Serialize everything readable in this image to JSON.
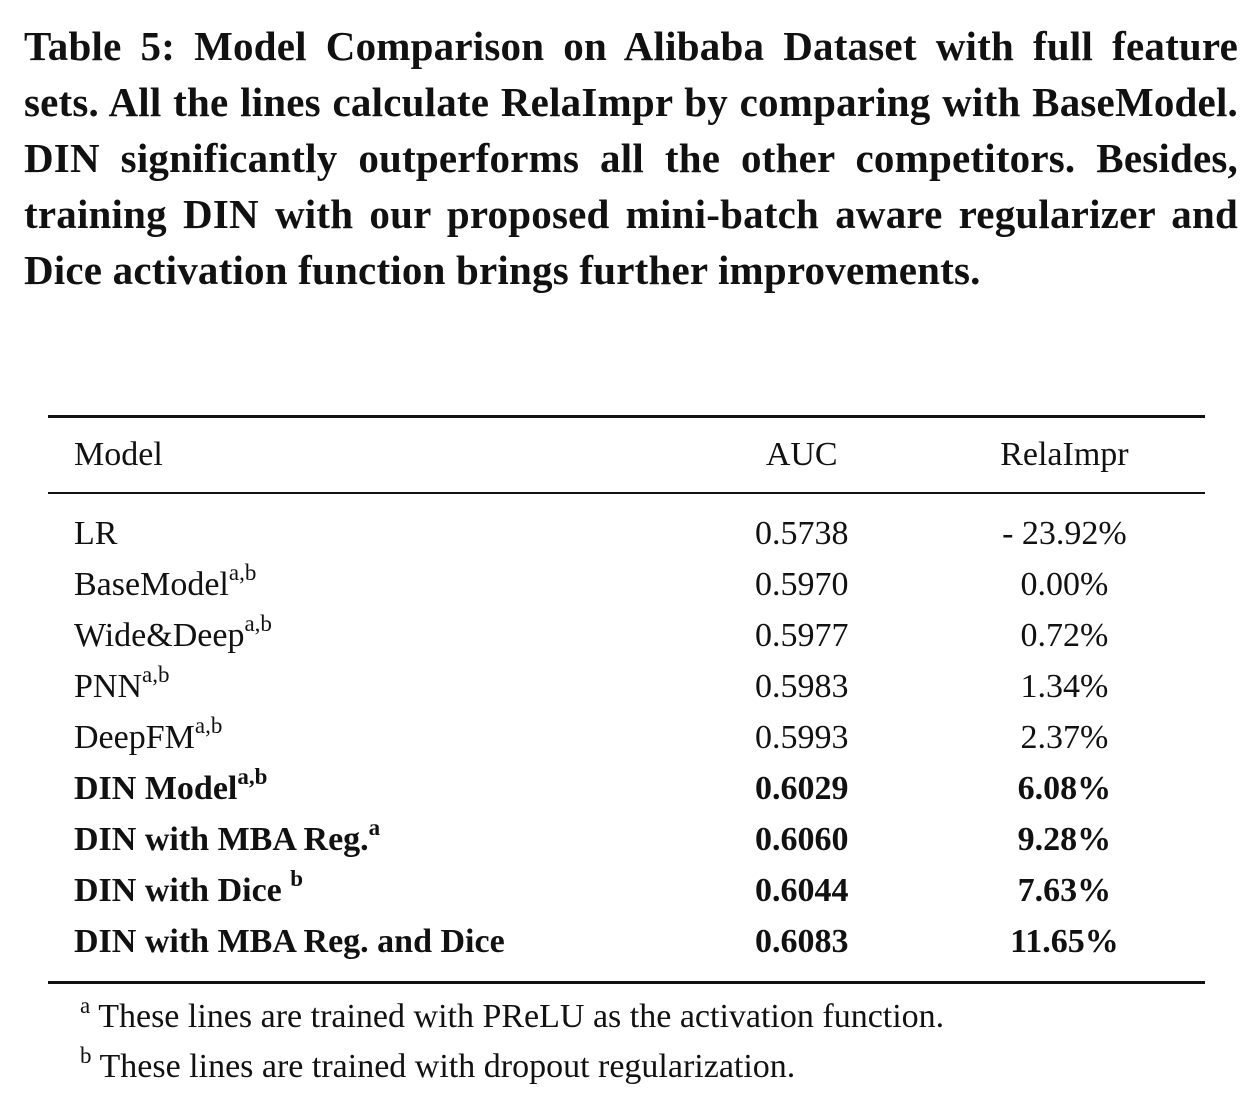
{
  "caption": "Table 5: Model Comparison on Alibaba Dataset with full feature sets. All the lines calculate RelaImpr by comparing with BaseModel. DIN significantly outperforms all the other competitors. Besides, training DIN with our proposed mini-batch aware regularizer and Dice activation function brings further improvements.",
  "table": {
    "headers": {
      "model": "Model",
      "auc": "AUC",
      "relaimpr": "RelaImpr"
    },
    "rows": [
      {
        "model": "LR",
        "sup": "",
        "auc": "0.5738",
        "relaimpr": "- 23.92%",
        "bold": false
      },
      {
        "model": "BaseModel",
        "sup": "a,b",
        "auc": "0.5970",
        "relaimpr": "0.00%",
        "bold": false
      },
      {
        "model": "Wide&Deep",
        "sup": "a,b",
        "auc": "0.5977",
        "relaimpr": "0.72%",
        "bold": false
      },
      {
        "model": "PNN",
        "sup": "a,b",
        "auc": "0.5983",
        "relaimpr": "1.34%",
        "bold": false
      },
      {
        "model": "DeepFM",
        "sup": "a,b",
        "auc": "0.5993",
        "relaimpr": "2.37%",
        "bold": false
      },
      {
        "model": "DIN Model",
        "sup": "a,b",
        "auc": "0.6029",
        "relaimpr": "6.08%",
        "bold": true
      },
      {
        "model": "DIN with MBA Reg.",
        "sup": "a",
        "auc": "0.6060",
        "relaimpr": "9.28%",
        "bold": true
      },
      {
        "model": "DIN with Dice ",
        "sup": "b",
        "auc": "0.6044",
        "relaimpr": "7.63%",
        "bold": true
      },
      {
        "model": "DIN with MBA Reg. and Dice",
        "sup": "",
        "auc": "0.6083",
        "relaimpr": "11.65%",
        "bold": true
      }
    ]
  },
  "footnotes": [
    {
      "mark": "a",
      "text": "These lines are trained with PReLU as the activation function."
    },
    {
      "mark": "b",
      "text": "These lines are trained with dropout regularization."
    }
  ]
}
